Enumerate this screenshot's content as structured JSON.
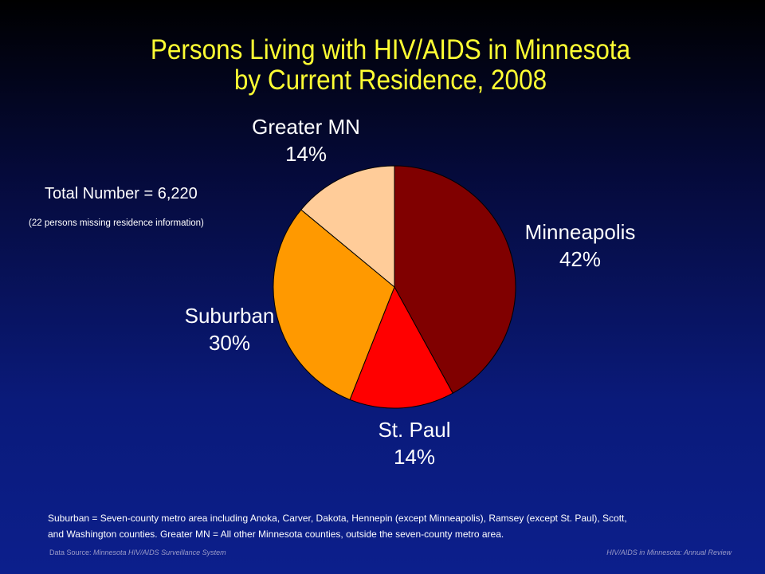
{
  "chart_data": {
    "type": "pie",
    "title_lines": [
      "Persons Living with HIV/AIDS in Minnesota",
      "by Current Residence, 2008"
    ],
    "slices": [
      {
        "label": "Minneapolis",
        "pct_label": "42%",
        "value": 42,
        "color": "#800000"
      },
      {
        "label": "St. Paul",
        "pct_label": "14%",
        "value": 14,
        "color": "#ff0000"
      },
      {
        "label": "Suburban",
        "pct_label": "30%",
        "value": 30,
        "color": "#ff9900"
      },
      {
        "label": "Greater MN",
        "pct_label": "14%",
        "value": 14,
        "color": "#ffcc99"
      }
    ]
  },
  "annotations": {
    "total": "Total Number = 6,220",
    "missing": "(22 persons missing residence information)"
  },
  "footnote": {
    "line1": "Suburban = Seven-county metro area including Anoka, Carver, Dakota, Hennepin (except Minneapolis), Ramsey (except St. Paul), Scott,",
    "line2": "and Washington counties.  Greater MN = All other Minnesota counties, outside the seven-county metro area."
  },
  "source": {
    "prefix": "Data Source: ",
    "name": "Minnesota HIV/AIDS Surveillance System",
    "right": "HIV/AIDS in Minnesota: Annual Review"
  }
}
